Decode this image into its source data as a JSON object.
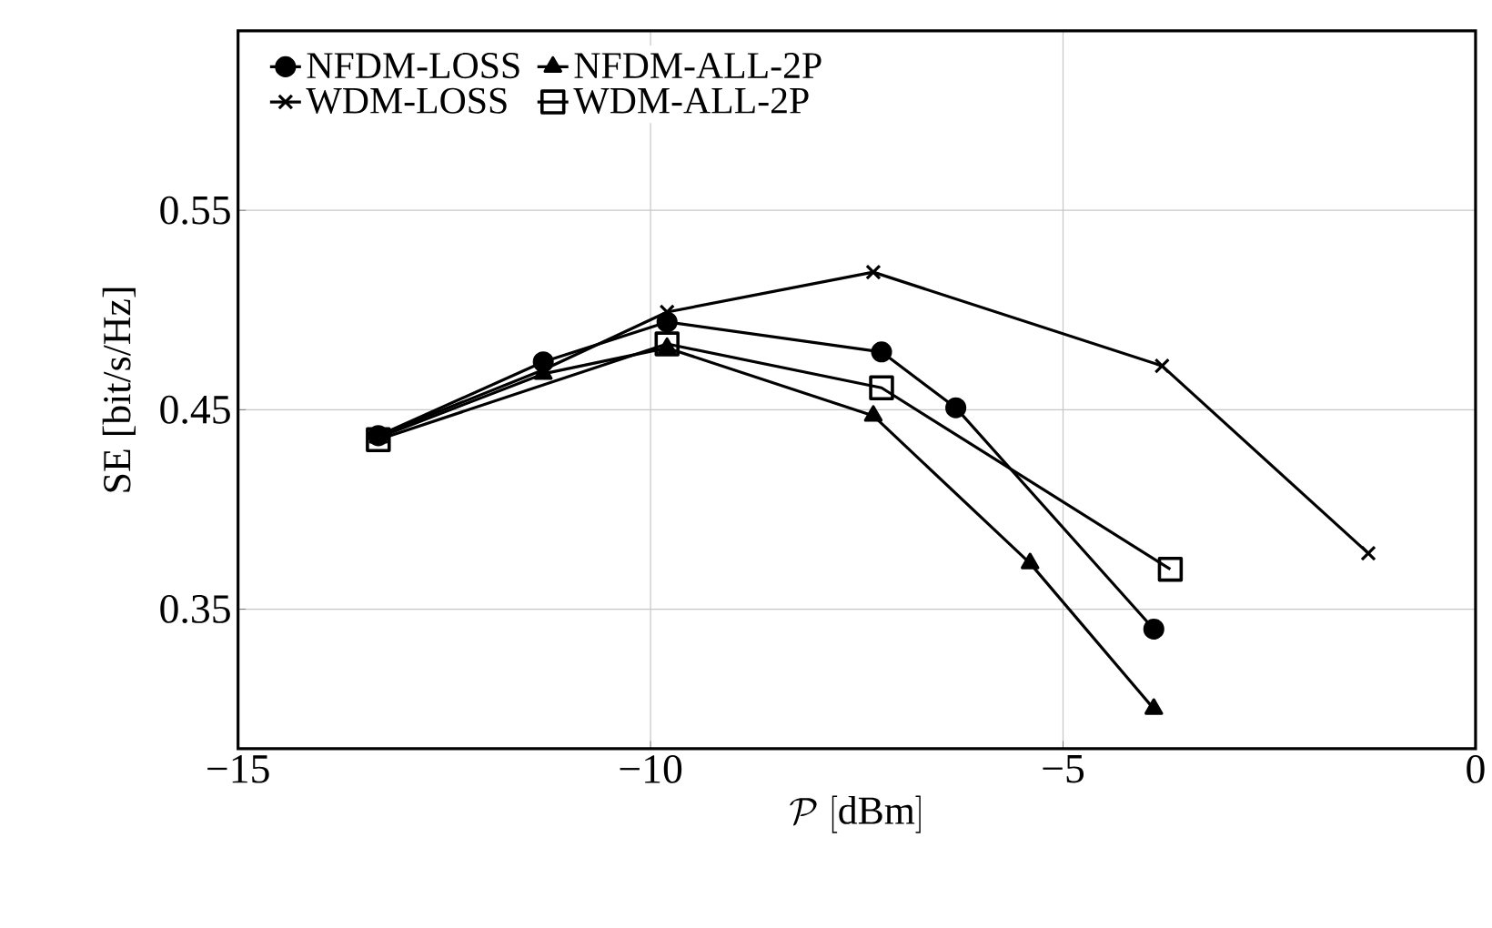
{
  "chart_data": {
    "type": "line",
    "xlabel": "\\mathcal{P}\\ [\\mathrm{dBm}]",
    "ylabel": "SE [bit/s/Hz]",
    "xlim": [
      -15,
      0
    ],
    "ylim": [
      0.28,
      0.64
    ],
    "xticks": [
      {
        "value": -15,
        "label": "−15"
      },
      {
        "value": -10,
        "label": "−10"
      },
      {
        "value": -5,
        "label": "−5"
      },
      0
    ],
    "yticks": [
      0.35,
      0.45,
      0.55
    ],
    "grid": true,
    "legend": "top left",
    "line_style": "solid",
    "series": [
      {
        "name": "NFDM-LOSS",
        "color": "#000000",
        "marker": "circle",
        "x": [
          -13.3,
          -11.3,
          -9.8,
          -7.2,
          -6.3,
          -3.9
        ],
        "values": [
          0.437,
          0.474,
          0.494,
          0.479,
          0.451,
          0.34
        ]
      },
      {
        "name": "NFDM-ALL-2P",
        "color": "#000000",
        "marker": "triangle",
        "x": [
          -13.3,
          -11.3,
          -9.8,
          -7.3,
          -5.4,
          -3.9
        ],
        "values": [
          0.436,
          0.468,
          0.481,
          0.447,
          0.373,
          0.3
        ]
      },
      {
        "name": "WDM-LOSS",
        "color": "#000000",
        "marker": "cross",
        "x": [
          -13.3,
          -11.3,
          -9.8,
          -7.3,
          -3.8,
          -1.3
        ],
        "values": [
          0.437,
          0.47,
          0.499,
          0.519,
          0.472,
          0.378
        ]
      },
      {
        "name": "WDM-ALL-2P",
        "color": "#000000",
        "marker": "square",
        "x": [
          -13.3,
          -9.8,
          -7.2,
          -3.7
        ],
        "values": [
          0.435,
          0.483,
          0.461,
          0.37
        ]
      }
    ]
  }
}
